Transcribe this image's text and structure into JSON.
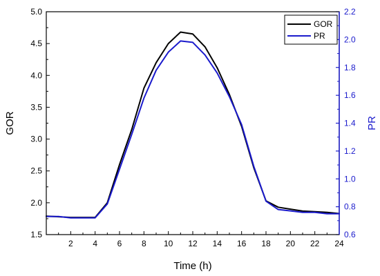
{
  "chart_data": {
    "type": "line",
    "title": "",
    "xlabel": "Time (h)",
    "ylabel_left": "GOR",
    "ylabel_right": "PR",
    "xlim": [
      0,
      24
    ],
    "ylim_left": [
      1.5,
      5.0
    ],
    "ylim_right": [
      0.6,
      2.2
    ],
    "x_ticks": [
      2,
      4,
      6,
      8,
      10,
      12,
      14,
      16,
      18,
      20,
      22,
      24
    ],
    "y_left_ticks": [
      "1.5",
      "2.0",
      "2.5",
      "3.0",
      "3.5",
      "4.0",
      "4.5",
      "5.0"
    ],
    "y_right_ticks": [
      "0.6",
      "0.8",
      "1.0",
      "1.2",
      "1.4",
      "1.6",
      "1.8",
      "2.0",
      "2.2"
    ],
    "grid": false,
    "legend_position": "top-right",
    "colors": {
      "left_axis": "#000000",
      "right_axis": "#1a1acc"
    },
    "series": [
      {
        "name": "GOR",
        "axis": "left",
        "color": "#000000",
        "x": [
          0,
          1,
          2,
          3,
          4,
          5,
          6,
          7,
          8,
          9,
          10,
          11,
          12,
          13,
          14,
          15,
          16,
          17,
          18,
          19,
          20,
          21,
          22,
          23,
          24
        ],
        "values": [
          1.79,
          1.78,
          1.77,
          1.77,
          1.77,
          2.0,
          2.6,
          3.15,
          3.8,
          4.2,
          4.5,
          4.68,
          4.65,
          4.45,
          4.12,
          3.7,
          3.2,
          2.55,
          2.03,
          1.93,
          1.9,
          1.87,
          1.86,
          1.85,
          1.83
        ]
      },
      {
        "name": "PR",
        "axis": "right",
        "color": "#1a1acc",
        "x": [
          0,
          1,
          2,
          3,
          4,
          5,
          6,
          7,
          8,
          9,
          10,
          11,
          12,
          13,
          14,
          15,
          16,
          17,
          18,
          19,
          20,
          21,
          22,
          23,
          24
        ],
        "values": [
          0.73,
          0.73,
          0.72,
          0.72,
          0.72,
          0.82,
          1.07,
          1.32,
          1.58,
          1.78,
          1.91,
          1.99,
          1.98,
          1.89,
          1.76,
          1.59,
          1.39,
          1.09,
          0.84,
          0.78,
          0.77,
          0.76,
          0.76,
          0.75,
          0.75
        ]
      }
    ]
  }
}
